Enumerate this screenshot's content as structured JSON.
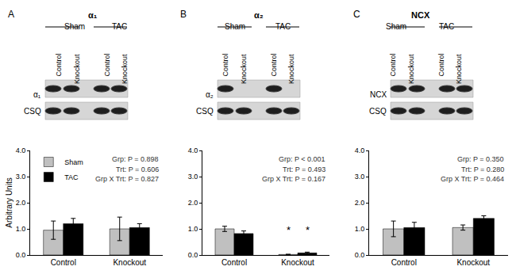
{
  "blots": [
    {
      "panel": "A",
      "title": "α₁",
      "groups": [
        "Sham",
        "TAC"
      ],
      "lanes": [
        "Control",
        "Knockout",
        "Control",
        "Knockout"
      ],
      "rows": [
        {
          "label": "α₁",
          "bands": [
            true,
            true,
            true,
            true
          ]
        },
        {
          "label": "CSQ",
          "bands": [
            true,
            true,
            true,
            true
          ]
        }
      ]
    },
    {
      "panel": "B",
      "title": "α₂",
      "groups": [
        "Sham",
        "TAC"
      ],
      "lanes": [
        "Control",
        "Knockout",
        "Control",
        "Knockout"
      ],
      "rows": [
        {
          "label": "α₂",
          "bands": [
            true,
            false,
            true,
            false
          ]
        },
        {
          "label": "CSQ",
          "bands": [
            true,
            true,
            true,
            true
          ]
        }
      ]
    },
    {
      "panel": "C",
      "title": "NCX",
      "groups": [
        "Sham",
        "TAC"
      ],
      "lanes": [
        "Control",
        "Knockout",
        "Control",
        "Knockout"
      ],
      "rows": [
        {
          "label": "NCX",
          "bands": [
            true,
            true,
            true,
            true
          ]
        },
        {
          "label": "CSQ",
          "bands": [
            true,
            true,
            true,
            true
          ]
        }
      ]
    }
  ],
  "chart_data": [
    {
      "type": "bar",
      "ylabel": "Arbitrary Units",
      "categories": [
        "Control",
        "Knockout"
      ],
      "series": [
        {
          "name": "Sham",
          "color": "#c0c0c0",
          "values": [
            0.95,
            1.0
          ],
          "errors": [
            0.35,
            0.45
          ]
        },
        {
          "name": "TAC",
          "color": "#000000",
          "values": [
            1.2,
            1.05
          ],
          "errors": [
            0.2,
            0.15
          ]
        }
      ],
      "ylim": [
        0,
        4
      ],
      "yticks": [
        {
          "value": 0,
          "label": "0.0"
        },
        {
          "value": 1,
          "label": "1.0"
        },
        {
          "value": 2,
          "label": "2.0"
        },
        {
          "value": 3,
          "label": "3.0"
        },
        {
          "value": 4,
          "label": "4.0"
        }
      ],
      "grid": false,
      "legend": "upper left",
      "annotations": [
        {
          "text": "Grp: P = 0.898"
        },
        {
          "text": "Trt: P = 0.606"
        },
        {
          "text": "Grp X Trt: P = 0.827"
        }
      ]
    },
    {
      "type": "bar",
      "categories": [
        "Control",
        "Knockout"
      ],
      "series": [
        {
          "name": "Sham",
          "color": "#c0c0c0",
          "values": [
            1.0,
            0.02
          ],
          "errors": [
            0.1,
            0.01
          ]
        },
        {
          "name": "TAC",
          "color": "#000000",
          "values": [
            0.82,
            0.08
          ],
          "errors": [
            0.1,
            0.03
          ]
        }
      ],
      "ylim": [
        0,
        4
      ],
      "yticks": [
        {
          "value": 0,
          "label": "0.0"
        },
        {
          "value": 1,
          "label": "1.0"
        },
        {
          "value": 2,
          "label": "2.0"
        },
        {
          "value": 3,
          "label": "3.0"
        },
        {
          "value": 4,
          "label": "4.0"
        }
      ],
      "grid": false,
      "annotations": [
        {
          "text": "Grp: P < 0.001"
        },
        {
          "text": "Trt: P = 0.493"
        },
        {
          "text": "Grp X Trt: P = 0.167"
        },
        {
          "text": "*",
          "category": "Knockout",
          "series": "Sham",
          "y": 0.95
        },
        {
          "text": "*",
          "category": "Knockout",
          "series": "TAC",
          "y": 0.95
        }
      ]
    },
    {
      "type": "bar",
      "categories": [
        "Control",
        "Knockout"
      ],
      "series": [
        {
          "name": "Sham",
          "color": "#c0c0c0",
          "values": [
            1.0,
            1.05
          ],
          "errors": [
            0.3,
            0.1
          ]
        },
        {
          "name": "TAC",
          "color": "#000000",
          "values": [
            1.05,
            1.4
          ],
          "errors": [
            0.2,
            0.1
          ]
        }
      ],
      "ylim": [
        0,
        4
      ],
      "yticks": [
        {
          "value": 0,
          "label": "0.0"
        },
        {
          "value": 1,
          "label": "1.0"
        },
        {
          "value": 2,
          "label": "2.0"
        },
        {
          "value": 3,
          "label": "3.0"
        },
        {
          "value": 4,
          "label": "4.0"
        }
      ],
      "grid": false,
      "annotations": [
        {
          "text": "Grp: P = 0.350"
        },
        {
          "text": "Trt: P = 0.280"
        },
        {
          "text": "Grp X Trt: P = 0.464"
        }
      ]
    }
  ]
}
